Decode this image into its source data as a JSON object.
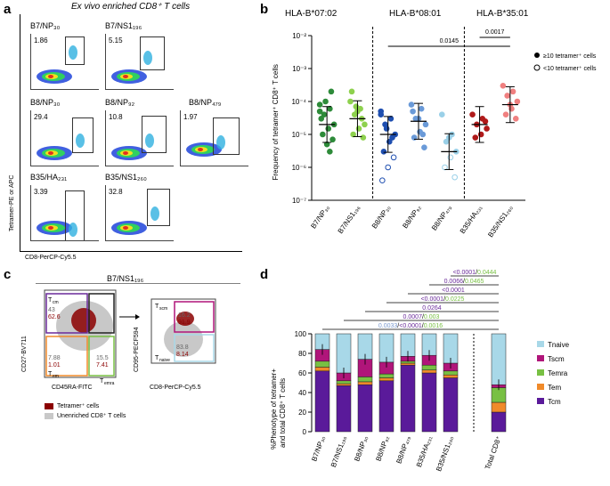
{
  "panels": {
    "a": "a",
    "b": "b",
    "c": "c",
    "d": "d"
  },
  "panel_a": {
    "title": "Ex vivo enriched CD8⁺ T cells",
    "y_axis": "Tetramer-PE or APC",
    "x_axis": "CD8-PerCP-Cy5.5",
    "plots": [
      {
        "label": "B7/NP₃₀",
        "value": "1.86"
      },
      {
        "label": "B7/NS1₁₉₆",
        "value": "5.15"
      },
      {
        "label": "B8/NP₃₀",
        "value": "29.4"
      },
      {
        "label": "B8/NP₉₂",
        "value": "10.8"
      },
      {
        "label": "B8/NP₄₇₉",
        "value": "1.97"
      },
      {
        "label": "B35/HA₂₃₁",
        "value": "3.39"
      },
      {
        "label": "B35/NS1₂₆₀",
        "value": "32.8"
      }
    ]
  },
  "panel_b": {
    "headers": [
      {
        "text": "HLA-B*07:02",
        "color": "#4a9a3a"
      },
      {
        "text": "HLA-B*08:01",
        "color": "#2a2ad0"
      },
      {
        "text": "HLA-B*35:01",
        "color": "#c8201e"
      }
    ],
    "legend": [
      "≥10 tetramer⁺ cells",
      "<10 tetramer⁺ cells"
    ],
    "pvalues": [
      "0.0145",
      "0.0017"
    ]
  },
  "panel_c": {
    "title": "B7/NS1₁₉₆",
    "plot1": {
      "ylabel": "CD27-BV711",
      "xlabel": "CD45RA-FITC",
      "q_tl": {
        "name": "Tcm",
        "v1": "43",
        "v2": "62.6"
      },
      "q_bl": {
        "name": "Tem",
        "v1": "7.88",
        "v2": "1.01"
      },
      "q_br": {
        "name": "Temra",
        "v1": "15.5",
        "v2": "7.41"
      }
    },
    "plot2": {
      "ylabel": "CD95-PECF594",
      "xlabel": "CD8-PerCP-Cy5.5",
      "q_top": {
        "name": "Tscm",
        "v1": "16.2",
        "v2": "91.9"
      },
      "q_bot": {
        "name": "Tnaive",
        "v1": "83.8",
        "v2": "8.14"
      }
    },
    "legend": [
      "Tetramer⁺ cells",
      "Unenriched CD8⁺ T cells"
    ]
  },
  "panel_d": {
    "ylabel_1": "%Phenotype of tetramer+",
    "ylabel_2": "and total CD8⁺ T cells",
    "pvals": [
      {
        "a": "<0.0001",
        "b": "0.0444"
      },
      {
        "a": "0.0066",
        "b": "0.0465"
      },
      {
        "a": "<0.0001",
        "b": ""
      },
      {
        "a": "<0.0001",
        "b": "0.0225"
      },
      {
        "a": "0.0264",
        "b": ""
      },
      {
        "a": "0.0007",
        "b": "0.003"
      },
      {
        "a": "0.0033",
        "b": "<0.0001",
        "c": "0.0016"
      }
    ],
    "legend": [
      "Tnaive",
      "Tscm",
      "Temra",
      "Tem",
      "Tcm"
    ],
    "colors": [
      "#a8d8e8",
      "#b0157a",
      "#78c043",
      "#f08a2a",
      "#5a1a9a"
    ]
  },
  "chart_data": [
    {
      "type": "scatter",
      "categories": [
        "B7/NP₃₀",
        "B7/NS1₁₉₆",
        "B8/NP₃₀",
        "B8/NP₉₂",
        "B8/NP₄₇₉",
        "B35/HA₂₃₁",
        "B35/NS1₂₆₀"
      ],
      "ylabel": "Frequency of tetramer⁺ CD8⁺ T cells",
      "yscale": "log",
      "ylim": [
        1e-07,
        0.01
      ],
      "yticks": [
        "10⁻²",
        "10⁻³",
        "10⁻⁴",
        "10⁻⁵",
        "10⁻⁶",
        "10⁻⁷"
      ],
      "median": [
        2e-05,
        3e-05,
        1e-05,
        2.5e-05,
        3e-06,
        2e-05,
        8e-05
      ],
      "colors": [
        "#2e8b3a",
        "#8ed14e",
        "#1f4fb0",
        "#6a9ad8",
        "#9ad0e8",
        "#b01a1a",
        "#f08080"
      ]
    },
    {
      "type": "bar",
      "categories": [
        "B7/NP₃₀",
        "B7/NS1₁₉₆",
        "B8/NP₃₀",
        "B8/NP₉₂",
        "B8/NP₄₇₉",
        "B35/HA₂₃₁",
        "B35/NS1₂₆₀",
        "Total CD8⁺"
      ],
      "yticks": [
        "0",
        "20",
        "40",
        "60",
        "80",
        "100"
      ],
      "ylim": [
        0,
        100
      ],
      "series": [
        {
          "name": "Tcm",
          "values": [
            62,
            47,
            48,
            52,
            68,
            60,
            55,
            20
          ]
        },
        {
          "name": "Tem",
          "values": [
            4,
            2,
            3,
            3,
            2,
            3,
            3,
            10
          ]
        },
        {
          "name": "Temra",
          "values": [
            6,
            3,
            5,
            4,
            2,
            5,
            4,
            15
          ]
        },
        {
          "name": "Tscm",
          "values": [
            12,
            8,
            18,
            12,
            5,
            10,
            8,
            3
          ]
        },
        {
          "name": "Tnaive",
          "values": [
            16,
            40,
            26,
            29,
            23,
            22,
            30,
            52
          ]
        }
      ]
    }
  ]
}
